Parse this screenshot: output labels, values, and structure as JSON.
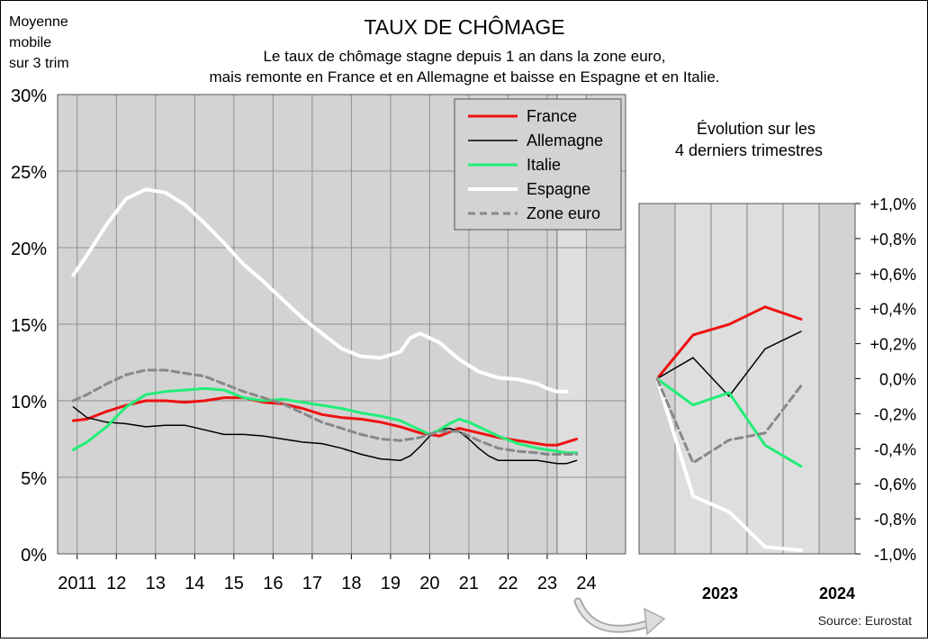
{
  "header": {
    "title": "TAUX DE CHÔMAGE",
    "subtitle_line1": "Le taux de chômage stagne depuis 1 an dans la zone euro,",
    "subtitle_line2": "mais remonte en France et en Allemagne et baisse en Espagne et en Italie.",
    "side_note": [
      "Moyenne",
      "mobile",
      "sur 3 trim"
    ],
    "source": "Source: Eurostat"
  },
  "colors": {
    "france": "#ee1111",
    "allemagne": "#000000",
    "italie": "#22ee77",
    "espagne": "#ffffff",
    "zone_euro": "#888888",
    "plot_bg": "#d3d3d3",
    "plot_bg_recent": "#dedede"
  },
  "chart_data": [
    {
      "type": "line",
      "title": "TAUX DE CHÔMAGE",
      "x_unit": "year",
      "xlim": [
        2010.5,
        2025.0
      ],
      "ylim": [
        0,
        30
      ],
      "yticks": [
        "0%",
        "5%",
        "10%",
        "15%",
        "20%",
        "25%",
        "30%"
      ],
      "xticks": [
        {
          "x": 2011,
          "label": "2011"
        },
        {
          "x": 2012,
          "label": "12"
        },
        {
          "x": 2013,
          "label": "13"
        },
        {
          "x": 2014,
          "label": "14"
        },
        {
          "x": 2015,
          "label": "15"
        },
        {
          "x": 2016,
          "label": "16"
        },
        {
          "x": 2017,
          "label": "17"
        },
        {
          "x": 2018,
          "label": "18"
        },
        {
          "x": 2019,
          "label": "19"
        },
        {
          "x": 2020,
          "label": "20"
        },
        {
          "x": 2021,
          "label": "21"
        },
        {
          "x": 2022,
          "label": "22"
        },
        {
          "x": 2023,
          "label": "23"
        },
        {
          "x": 2024,
          "label": "24"
        }
      ],
      "highlight_x_range": [
        2023.25,
        2024.0
      ],
      "grid": true,
      "legend_position": "top-right",
      "series": [
        {
          "name": "France",
          "color_key": "france",
          "width": 3,
          "dash": "",
          "points": [
            [
              2010.9,
              8.7
            ],
            [
              2011.25,
              8.8
            ],
            [
              2011.75,
              9.3
            ],
            [
              2012.25,
              9.7
            ],
            [
              2012.75,
              10.0
            ],
            [
              2013.25,
              10.0
            ],
            [
              2013.75,
              9.9
            ],
            [
              2014.25,
              10.0
            ],
            [
              2014.75,
              10.2
            ],
            [
              2015.25,
              10.2
            ],
            [
              2015.75,
              9.9
            ],
            [
              2016.25,
              9.8
            ],
            [
              2016.75,
              9.5
            ],
            [
              2017.25,
              9.1
            ],
            [
              2017.75,
              8.9
            ],
            [
              2018.25,
              8.8
            ],
            [
              2018.75,
              8.6
            ],
            [
              2019.25,
              8.3
            ],
            [
              2019.75,
              7.9
            ],
            [
              2020.25,
              7.7
            ],
            [
              2020.75,
              8.2
            ],
            [
              2021.25,
              7.9
            ],
            [
              2021.75,
              7.6
            ],
            [
              2022.25,
              7.4
            ],
            [
              2022.75,
              7.2
            ],
            [
              2023.0,
              7.1
            ],
            [
              2023.25,
              7.1
            ],
            [
              2023.5,
              7.3
            ],
            [
              2023.75,
              7.5
            ]
          ]
        },
        {
          "name": "Allemagne",
          "color_key": "allemagne",
          "width": 1.5,
          "dash": "",
          "points": [
            [
              2010.9,
              9.6
            ],
            [
              2011.25,
              8.9
            ],
            [
              2011.75,
              8.6
            ],
            [
              2012.25,
              8.5
            ],
            [
              2012.75,
              8.3
            ],
            [
              2013.25,
              8.4
            ],
            [
              2013.75,
              8.4
            ],
            [
              2014.25,
              8.1
            ],
            [
              2014.75,
              7.8
            ],
            [
              2015.25,
              7.8
            ],
            [
              2015.75,
              7.7
            ],
            [
              2016.25,
              7.5
            ],
            [
              2016.75,
              7.3
            ],
            [
              2017.25,
              7.2
            ],
            [
              2017.75,
              6.9
            ],
            [
              2018.25,
              6.5
            ],
            [
              2018.75,
              6.2
            ],
            [
              2019.25,
              6.1
            ],
            [
              2019.5,
              6.4
            ],
            [
              2019.75,
              7.0
            ],
            [
              2020.0,
              7.7
            ],
            [
              2020.25,
              8.1
            ],
            [
              2020.5,
              8.2
            ],
            [
              2020.75,
              8.0
            ],
            [
              2021.0,
              7.5
            ],
            [
              2021.25,
              6.9
            ],
            [
              2021.5,
              6.4
            ],
            [
              2021.75,
              6.1
            ],
            [
              2022.25,
              6.1
            ],
            [
              2022.75,
              6.1
            ],
            [
              2023.0,
              6.0
            ],
            [
              2023.25,
              5.9
            ],
            [
              2023.5,
              5.9
            ],
            [
              2023.75,
              6.1
            ]
          ]
        },
        {
          "name": "Italie",
          "color_key": "italie",
          "width": 3,
          "dash": "",
          "points": [
            [
              2010.9,
              6.8
            ],
            [
              2011.25,
              7.3
            ],
            [
              2011.75,
              8.3
            ],
            [
              2012.25,
              9.6
            ],
            [
              2012.75,
              10.4
            ],
            [
              2013.25,
              10.6
            ],
            [
              2013.75,
              10.7
            ],
            [
              2014.25,
              10.8
            ],
            [
              2014.75,
              10.7
            ],
            [
              2015.25,
              10.2
            ],
            [
              2015.75,
              10.0
            ],
            [
              2016.25,
              10.1
            ],
            [
              2016.75,
              9.9
            ],
            [
              2017.25,
              9.7
            ],
            [
              2017.75,
              9.5
            ],
            [
              2018.25,
              9.2
            ],
            [
              2018.75,
              9.0
            ],
            [
              2019.25,
              8.7
            ],
            [
              2019.75,
              8.1
            ],
            [
              2020.0,
              7.8
            ],
            [
              2020.25,
              8.1
            ],
            [
              2020.5,
              8.5
            ],
            [
              2020.75,
              8.8
            ],
            [
              2021.0,
              8.6
            ],
            [
              2021.25,
              8.3
            ],
            [
              2021.75,
              7.7
            ],
            [
              2022.25,
              7.2
            ],
            [
              2022.75,
              6.9
            ],
            [
              2023.0,
              6.8
            ],
            [
              2023.25,
              6.7
            ],
            [
              2023.5,
              6.6
            ],
            [
              2023.75,
              6.6
            ]
          ]
        },
        {
          "name": "Espagne",
          "color_key": "espagne",
          "width": 4,
          "dash": "",
          "points": [
            [
              2010.9,
              18.2
            ],
            [
              2011.25,
              19.5
            ],
            [
              2011.75,
              21.5
            ],
            [
              2012.25,
              23.2
            ],
            [
              2012.75,
              23.8
            ],
            [
              2013.25,
              23.6
            ],
            [
              2013.75,
              22.8
            ],
            [
              2014.25,
              21.6
            ],
            [
              2014.75,
              20.3
            ],
            [
              2015.25,
              18.9
            ],
            [
              2015.75,
              17.8
            ],
            [
              2016.25,
              16.6
            ],
            [
              2016.75,
              15.4
            ],
            [
              2017.25,
              14.4
            ],
            [
              2017.75,
              13.4
            ],
            [
              2018.25,
              12.9
            ],
            [
              2018.75,
              12.8
            ],
            [
              2019.25,
              13.2
            ],
            [
              2019.5,
              14.1
            ],
            [
              2019.75,
              14.4
            ],
            [
              2020.25,
              13.8
            ],
            [
              2020.75,
              12.7
            ],
            [
              2021.25,
              11.9
            ],
            [
              2021.75,
              11.5
            ],
            [
              2022.25,
              11.4
            ],
            [
              2022.75,
              11.1
            ],
            [
              2023.0,
              10.8
            ],
            [
              2023.25,
              10.6
            ],
            [
              2023.5,
              10.6
            ]
          ]
        },
        {
          "name": "Zone euro",
          "color_key": "zone_euro",
          "width": 3,
          "dash": "8,5",
          "points": [
            [
              2010.9,
              10.0
            ],
            [
              2011.25,
              10.4
            ],
            [
              2011.75,
              11.1
            ],
            [
              2012.25,
              11.7
            ],
            [
              2012.75,
              12.0
            ],
            [
              2013.25,
              12.0
            ],
            [
              2013.75,
              11.8
            ],
            [
              2014.25,
              11.6
            ],
            [
              2014.75,
              11.1
            ],
            [
              2015.25,
              10.6
            ],
            [
              2015.75,
              10.2
            ],
            [
              2016.25,
              9.8
            ],
            [
              2016.75,
              9.2
            ],
            [
              2017.25,
              8.6
            ],
            [
              2017.75,
              8.2
            ],
            [
              2018.25,
              7.8
            ],
            [
              2018.75,
              7.5
            ],
            [
              2019.25,
              7.4
            ],
            [
              2019.75,
              7.6
            ],
            [
              2020.25,
              8.0
            ],
            [
              2020.75,
              8.0
            ],
            [
              2021.25,
              7.4
            ],
            [
              2021.75,
              6.9
            ],
            [
              2022.25,
              6.7
            ],
            [
              2022.75,
              6.6
            ],
            [
              2023.0,
              6.5
            ],
            [
              2023.25,
              6.5
            ],
            [
              2023.5,
              6.5
            ],
            [
              2023.75,
              6.5
            ]
          ]
        }
      ]
    },
    {
      "type": "line",
      "title": "Évolution sur les\n4 derniers trimestres",
      "ylim": [
        -1.0,
        1.0
      ],
      "yticks": [
        "+1,0%",
        "+0,8%",
        "+0,6%",
        "+0,4%",
        "+0,2%",
        "0,0%",
        "-0,2%",
        "-0,4%",
        "-0,6%",
        "-0,8%",
        "-1,0%"
      ],
      "quarters": [
        0,
        1,
        2,
        3,
        4,
        5
      ],
      "xlim": [
        -0.5,
        5.5
      ],
      "xticks": [
        {
          "x": 1.75,
          "label": "2023"
        },
        {
          "x": 5.0,
          "label": "2024"
        }
      ],
      "grid": true,
      "series": [
        {
          "name": "France",
          "color_key": "france",
          "width": 3,
          "dash": "",
          "values": [
            0,
            0.25,
            0.31,
            0.41,
            0.34
          ]
        },
        {
          "name": "Allemagne",
          "color_key": "allemagne",
          "width": 1.5,
          "dash": "",
          "values": [
            0,
            0.12,
            -0.1,
            0.17,
            0.27
          ]
        },
        {
          "name": "Italie",
          "color_key": "italie",
          "width": 3,
          "dash": "",
          "values": [
            0,
            -0.15,
            -0.08,
            -0.38,
            -0.5
          ]
        },
        {
          "name": "Espagne",
          "color_key": "espagne",
          "width": 4,
          "dash": "",
          "values": [
            0,
            -0.67,
            -0.76,
            -0.96,
            -0.98
          ]
        },
        {
          "name": "Zone euro",
          "color_key": "zone_euro",
          "width": 3,
          "dash": "8,5",
          "values": [
            0,
            -0.48,
            -0.35,
            -0.31,
            -0.04
          ]
        }
      ]
    }
  ]
}
